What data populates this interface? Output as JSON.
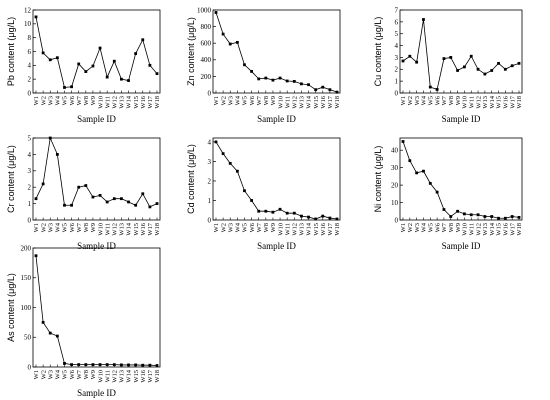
{
  "chart_data": [
    {
      "type": "line",
      "ylabel": "Pb content   (μg/L)",
      "xlabel": "Sample ID",
      "categories": [
        "W1",
        "W2",
        "W3",
        "W4",
        "W5",
        "W6",
        "W7",
        "W8",
        "W9",
        "W10",
        "W11",
        "W12",
        "W13",
        "W14",
        "W15",
        "W16",
        "W17",
        "W18"
      ],
      "values": [
        11,
        5.8,
        4.8,
        5.1,
        0.8,
        0.9,
        4.2,
        3.1,
        3.9,
        6.5,
        2.3,
        4.6,
        2.0,
        1.8,
        5.7,
        7.7,
        4.0,
        2.8
      ],
      "ylim": [
        0,
        12
      ],
      "yticks": [
        0,
        2,
        4,
        6,
        8,
        10,
        12
      ]
    },
    {
      "type": "line",
      "ylabel": "Zn content   (μg/L)",
      "xlabel": "Sample ID",
      "categories": [
        "W1",
        "W2",
        "W3",
        "W4",
        "W5",
        "W6",
        "W7",
        "W8",
        "W9",
        "W10",
        "W11",
        "W12",
        "W13",
        "W14",
        "W15",
        "W16",
        "W17",
        "W18"
      ],
      "values": [
        970,
        710,
        590,
        610,
        340,
        260,
        170,
        180,
        155,
        180,
        145,
        140,
        110,
        100,
        40,
        70,
        40,
        10
      ],
      "ylim": [
        0,
        1000
      ],
      "yticks": [
        0,
        200,
        400,
        600,
        800,
        1000
      ]
    },
    {
      "type": "line",
      "ylabel": "Cu content   (μg/L)",
      "xlabel": "Sample ID",
      "categories": [
        "W1",
        "W2",
        "W3",
        "W4",
        "W5",
        "W6",
        "W7",
        "W8",
        "W9",
        "W10",
        "W11",
        "W12",
        "W13",
        "W14",
        "W15",
        "W16",
        "W17",
        "W18"
      ],
      "values": [
        2.7,
        3.1,
        2.6,
        6.2,
        0.5,
        0.3,
        2.9,
        3.0,
        1.9,
        2.2,
        3.1,
        2.0,
        1.6,
        1.9,
        2.5,
        2.0,
        2.3,
        2.5
      ],
      "ylim": [
        0,
        7
      ],
      "yticks": [
        0,
        1,
        2,
        3,
        4,
        5,
        6,
        7
      ]
    },
    {
      "type": "line",
      "ylabel": "Cr content   (μg/L)",
      "xlabel": "Sample ID",
      "categories": [
        "W1",
        "W2",
        "W3",
        "W4",
        "W5",
        "W6",
        "W7",
        "W8",
        "W9",
        "W10",
        "W11",
        "W12",
        "W13",
        "W14",
        "W15",
        "W16",
        "W17",
        "W18"
      ],
      "values": [
        1.3,
        2.2,
        5.0,
        4.0,
        0.9,
        0.9,
        2.0,
        2.1,
        1.4,
        1.5,
        1.1,
        1.3,
        1.3,
        1.1,
        0.9,
        1.6,
        0.8,
        1.0
      ],
      "ylim": [
        0,
        5
      ],
      "yticks": [
        0,
        1,
        2,
        3,
        4,
        5
      ]
    },
    {
      "type": "line",
      "ylabel": "Cd content   (μg/L)",
      "xlabel": "Sample ID",
      "categories": [
        "W1",
        "W2",
        "W3",
        "W4",
        "W5",
        "W6",
        "W7",
        "W8",
        "W9",
        "W10",
        "W11",
        "W12",
        "W13",
        "W14",
        "W15",
        "W16",
        "W17",
        "W18"
      ],
      "values": [
        4.0,
        3.4,
        2.9,
        2.5,
        1.5,
        1.0,
        0.45,
        0.45,
        0.4,
        0.55,
        0.35,
        0.35,
        0.2,
        0.15,
        0.05,
        0.2,
        0.1,
        0.05
      ],
      "ylim": [
        0,
        4.2
      ],
      "yticks": [
        0,
        1,
        2,
        3,
        4
      ]
    },
    {
      "type": "line",
      "ylabel": "Ni content   (μg/L)",
      "xlabel": "Sample ID",
      "categories": [
        "W1",
        "W2",
        "W3",
        "W4",
        "W5",
        "W6",
        "W7",
        "W8",
        "W9",
        "W10",
        "W11",
        "W12",
        "W13",
        "W14",
        "W15",
        "W16",
        "W17",
        "W18"
      ],
      "values": [
        45,
        34,
        27,
        28,
        21,
        16,
        6,
        2,
        5,
        3.5,
        3,
        3,
        2,
        2,
        1,
        1,
        2,
        1.5
      ],
      "ylim": [
        0,
        47
      ],
      "yticks": [
        0,
        10,
        20,
        30,
        40
      ]
    },
    {
      "type": "line",
      "ylabel": "As content   (μg/L)",
      "xlabel": "Sample ID",
      "categories": [
        "W1",
        "W2",
        "W3",
        "W4",
        "W5",
        "W6",
        "W7",
        "W8",
        "W9",
        "W10",
        "W11",
        "W12",
        "W13",
        "W14",
        "W15",
        "W16",
        "W17",
        "W18"
      ],
      "values": [
        187,
        75,
        57,
        52,
        6,
        4,
        4,
        4,
        4,
        4,
        4,
        4,
        3.5,
        3.5,
        3.5,
        3,
        3,
        2.5
      ],
      "ylim": [
        0,
        200
      ],
      "yticks": [
        0,
        50,
        100,
        150,
        200
      ]
    }
  ]
}
